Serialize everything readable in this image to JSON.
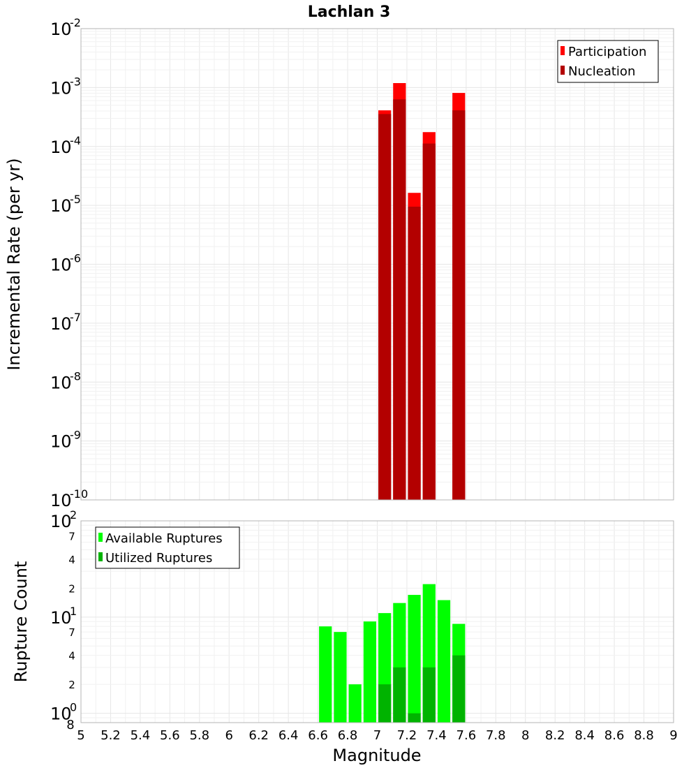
{
  "chart_data": [
    {
      "type": "bar",
      "scale": "log",
      "title": "Lachlan 3",
      "xlabel": "",
      "ylabel": "Incremental Rate (per yr)",
      "xlim": [
        5,
        9
      ],
      "ylim": [
        1e-10,
        0.01
      ],
      "bin_width": 0.1,
      "yticks": [
        {
          "base": "10",
          "exp": "-10",
          "value": 1e-10
        },
        {
          "base": "10",
          "exp": "-9",
          "value": 1e-09
        },
        {
          "base": "10",
          "exp": "-8",
          "value": 1e-08
        },
        {
          "base": "10",
          "exp": "-7",
          "value": 1e-07
        },
        {
          "base": "10",
          "exp": "-6",
          "value": 1e-06
        },
        {
          "base": "10",
          "exp": "-5",
          "value": 1e-05
        },
        {
          "base": "10",
          "exp": "-4",
          "value": 0.0001
        },
        {
          "base": "10",
          "exp": "-3",
          "value": 0.001
        },
        {
          "base": "10",
          "exp": "-2",
          "value": 0.01
        }
      ],
      "legend_position": "top-right",
      "series": [
        {
          "name": "Participation",
          "color": "#ff0000",
          "points": [
            {
              "x": 7.05,
              "y": 0.00041
            },
            {
              "x": 7.15,
              "y": 0.00119
            },
            {
              "x": 7.25,
              "y": 1.63e-05
            },
            {
              "x": 7.35,
              "y": 0.000175
            },
            {
              "x": 7.55,
              "y": 0.00081
            }
          ]
        },
        {
          "name": "Nucleation",
          "color": "#b30000",
          "points": [
            {
              "x": 7.05,
              "y": 0.000355
            },
            {
              "x": 7.15,
              "y": 0.00063
            },
            {
              "x": 7.25,
              "y": 9.5e-06
            },
            {
              "x": 7.35,
              "y": 0.000112
            },
            {
              "x": 7.55,
              "y": 0.00041
            }
          ]
        }
      ]
    },
    {
      "type": "bar",
      "scale": "log",
      "title": "",
      "xlabel": "Magnitude",
      "ylabel": "Rupture Count",
      "xlim": [
        5,
        9
      ],
      "ylim": [
        0.8,
        100
      ],
      "bin_width": 0.1,
      "xticks": [
        "5",
        "5.2",
        "5.4",
        "5.6",
        "5.8",
        "6",
        "6.2",
        "6.4",
        "6.6",
        "6.8",
        "7",
        "7.2",
        "7.4",
        "7.6",
        "7.8",
        "8",
        "8.2",
        "8.4",
        "8.6",
        "8.8",
        "9"
      ],
      "yticks": [
        {
          "base": "10",
          "exp": "0",
          "value": 1
        },
        {
          "base": "10",
          "exp": "1",
          "value": 10
        },
        {
          "base": "10",
          "exp": "2",
          "value": 100
        }
      ],
      "minor_ticks": [
        {
          "label": "8",
          "value": 0.8
        },
        {
          "label": "2",
          "value": 2
        },
        {
          "label": "4",
          "value": 4
        },
        {
          "label": "7",
          "value": 7
        },
        {
          "label": "2",
          "value": 20
        },
        {
          "label": "4",
          "value": 40
        },
        {
          "label": "7",
          "value": 70
        }
      ],
      "legend_position": "top-left",
      "series": [
        {
          "name": "Available Ruptures",
          "color": "#00ff00",
          "points": [
            {
              "x": 6.65,
              "y": 8
            },
            {
              "x": 6.75,
              "y": 7
            },
            {
              "x": 6.85,
              "y": 2
            },
            {
              "x": 6.95,
              "y": 9
            },
            {
              "x": 7.05,
              "y": 11
            },
            {
              "x": 7.15,
              "y": 14
            },
            {
              "x": 7.25,
              "y": 17
            },
            {
              "x": 7.35,
              "y": 22
            },
            {
              "x": 7.45,
              "y": 15
            },
            {
              "x": 7.55,
              "y": 8.5
            }
          ]
        },
        {
          "name": "Utilized Ruptures",
          "color": "#00b300",
          "points": [
            {
              "x": 7.05,
              "y": 2
            },
            {
              "x": 7.15,
              "y": 3
            },
            {
              "x": 7.25,
              "y": 1
            },
            {
              "x": 7.35,
              "y": 3
            },
            {
              "x": 7.55,
              "y": 4
            }
          ]
        }
      ]
    }
  ]
}
